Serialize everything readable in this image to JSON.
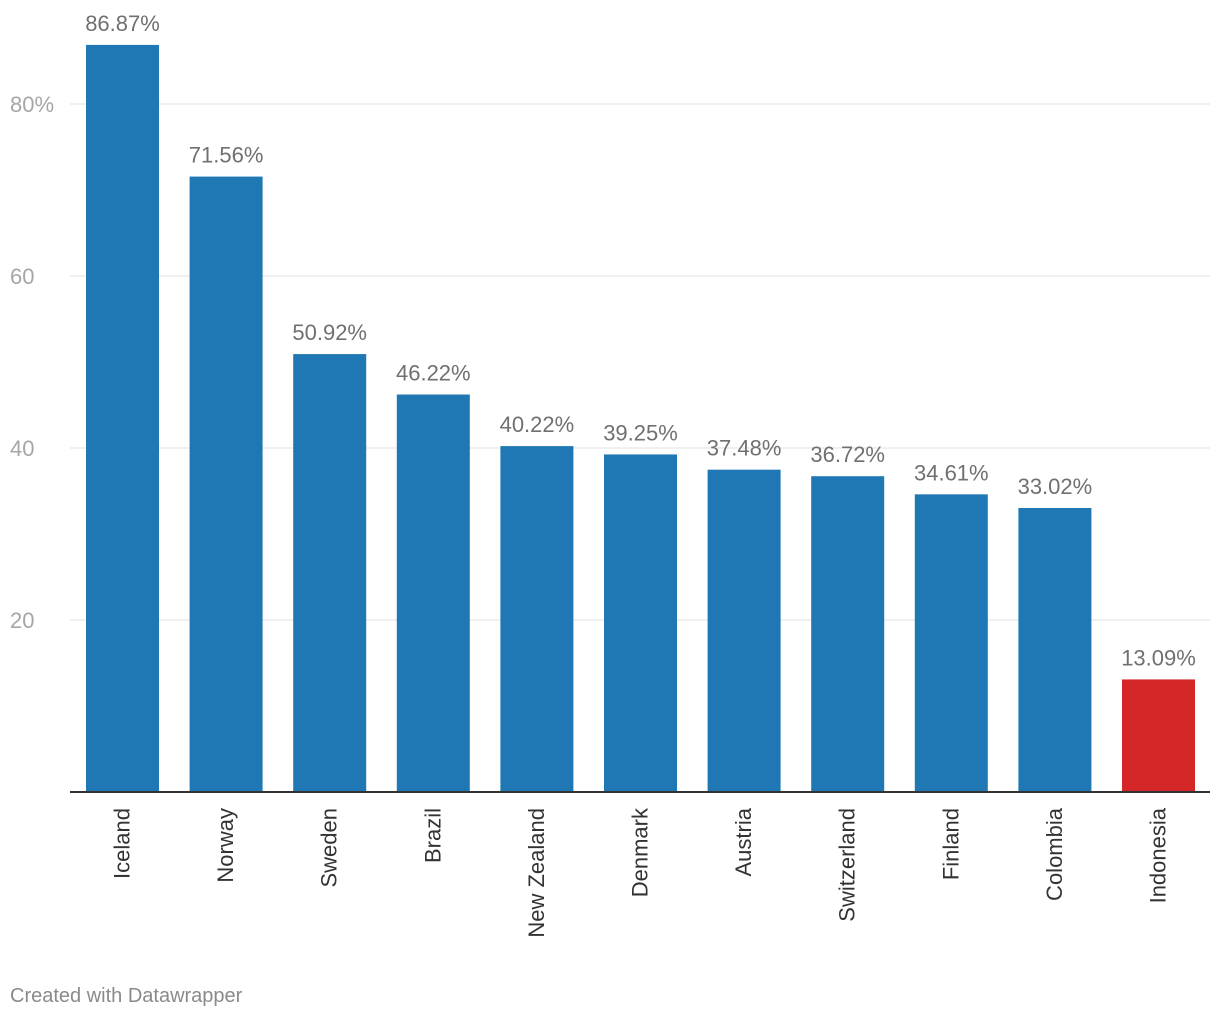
{
  "chart_data": {
    "type": "bar",
    "categories": [
      "Iceland",
      "Norway",
      "Sweden",
      "Brazil",
      "New Zealand",
      "Denmark",
      "Austria",
      "Switzerland",
      "Finland",
      "Colombia",
      "Indonesia"
    ],
    "values": [
      86.87,
      71.56,
      50.92,
      46.22,
      40.22,
      39.25,
      37.48,
      36.72,
      34.61,
      33.02,
      13.09
    ],
    "value_labels": [
      "86.87%",
      "71.56%",
      "50.92%",
      "46.22%",
      "40.22%",
      "39.25%",
      "37.48%",
      "36.72%",
      "34.61%",
      "33.02%",
      "13.09%"
    ],
    "y_ticks": [
      20,
      40,
      60,
      80
    ],
    "y_tick_labels": [
      "20",
      "40",
      "60",
      "80%"
    ],
    "ylim": [
      0,
      90
    ],
    "grid": true,
    "colors": {
      "default_bar": "#1f77b4",
      "highlight_bar": "#d62728"
    },
    "highlight_category": "Indonesia",
    "title": "",
    "xlabel": "",
    "ylabel": ""
  },
  "footer": {
    "credit": "Created with Datawrapper"
  }
}
